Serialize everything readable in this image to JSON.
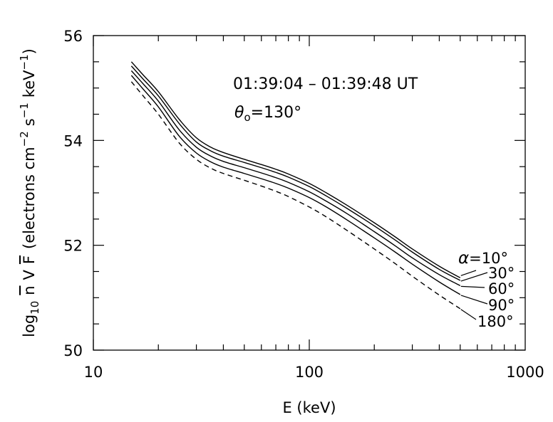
{
  "chart_data": {
    "type": "line",
    "xlabel": "E (keV)",
    "ylabel_parts": {
      "prefix": "log",
      "subscript": "10",
      "nbar": "n",
      "v": "V",
      "fbar": "F",
      "open": "(electrons cm",
      "exp1": "−2",
      "mid": "s",
      "exp2": "−1",
      "unit": "keV",
      "exp3": "−1",
      "close": ")"
    },
    "x_scale": "log",
    "xlim": [
      10,
      1000
    ],
    "ylim": [
      50,
      56
    ],
    "x_tick_labels": [
      "10",
      "100",
      "1000"
    ],
    "x_tick_values": [
      10,
      100,
      1000
    ],
    "y_tick_labels": [
      "50",
      "52",
      "54",
      "56"
    ],
    "y_tick_values": [
      50,
      52,
      54,
      56
    ],
    "annotation_time": "01:39:04 – 01:39:48 UT",
    "annotation_theta": {
      "symbol": "θ",
      "sub": "o",
      "value": "=130°"
    },
    "x": [
      15,
      17,
      20,
      25,
      30,
      35,
      40,
      50,
      60,
      70,
      80,
      100,
      120,
      150,
      200,
      250,
      300,
      400,
      500
    ],
    "series": [
      {
        "name": "α=10°",
        "dashed": false,
        "values": [
          55.5,
          55.25,
          54.93,
          54.4,
          54.05,
          53.87,
          53.77,
          53.64,
          53.54,
          53.45,
          53.36,
          53.18,
          53.0,
          52.76,
          52.43,
          52.16,
          51.93,
          51.6,
          51.38
        ]
      },
      {
        "name": "30°",
        "dashed": false,
        "values": [
          55.42,
          55.17,
          54.85,
          54.32,
          53.97,
          53.8,
          53.7,
          53.58,
          53.48,
          53.39,
          53.3,
          53.12,
          52.94,
          52.7,
          52.37,
          52.1,
          51.87,
          51.54,
          51.33
        ]
      },
      {
        "name": "60°",
        "dashed": false,
        "values": [
          55.33,
          55.08,
          54.75,
          54.2,
          53.87,
          53.7,
          53.6,
          53.48,
          53.38,
          53.29,
          53.2,
          53.02,
          52.84,
          52.6,
          52.26,
          51.99,
          51.76,
          51.44,
          51.23
        ]
      },
      {
        "name": "90°",
        "dashed": false,
        "values": [
          55.24,
          54.98,
          54.64,
          54.08,
          53.76,
          53.59,
          53.49,
          53.37,
          53.27,
          53.18,
          53.09,
          52.91,
          52.73,
          52.48,
          52.14,
          51.87,
          51.64,
          51.3,
          51.06
        ]
      },
      {
        "name": "180°",
        "dashed": true,
        "values": [
          55.12,
          54.85,
          54.5,
          53.95,
          53.64,
          53.47,
          53.37,
          53.24,
          53.13,
          53.03,
          52.93,
          52.73,
          52.54,
          52.28,
          51.93,
          51.65,
          51.41,
          51.05,
          50.79
        ]
      }
    ]
  }
}
